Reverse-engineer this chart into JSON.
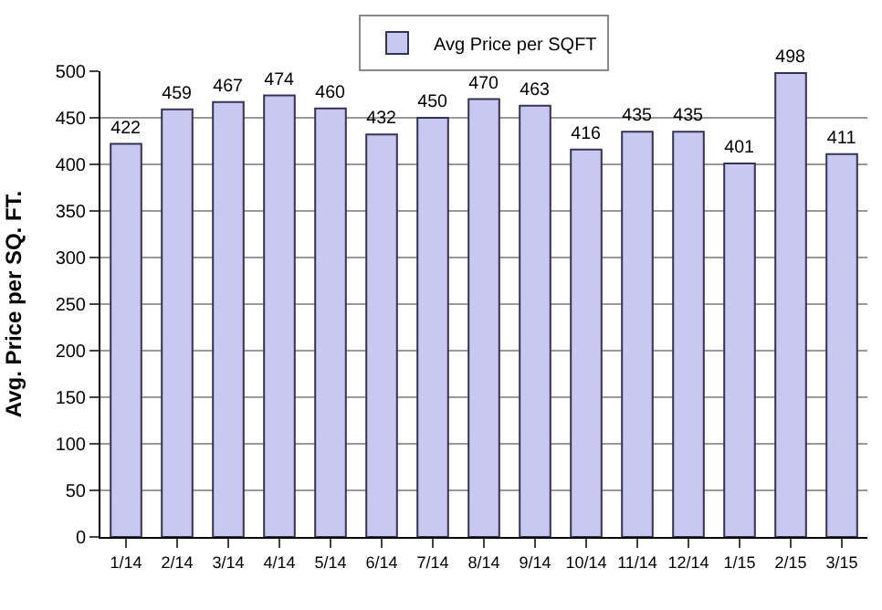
{
  "chart_data": {
    "type": "bar",
    "ylabel": "Avg. Price per SQ. FT.",
    "categories": [
      "1/14",
      "2/14",
      "3/14",
      "4/14",
      "5/14",
      "6/14",
      "7/14",
      "8/14",
      "9/14",
      "10/14",
      "11/14",
      "12/14",
      "1/15",
      "2/15",
      "3/15"
    ],
    "series": [
      {
        "name": "Avg Price per SQFT",
        "color": "#c8c8f0",
        "values": [
          422,
          459,
          467,
          474,
          460,
          432,
          450,
          470,
          463,
          416,
          435,
          435,
          401,
          498,
          411
        ]
      }
    ],
    "ylim": [
      0,
      500
    ],
    "yticks": [
      0,
      50,
      100,
      150,
      200,
      250,
      300,
      350,
      400,
      450,
      500
    ],
    "grid": "y",
    "legend": "top",
    "data_labels": true
  }
}
